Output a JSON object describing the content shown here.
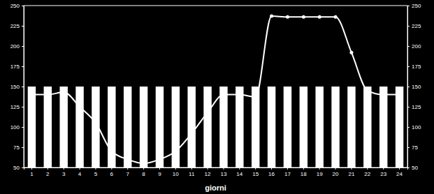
{
  "chart_data": {
    "type": "bar",
    "x_label": "giorni",
    "categories": [
      "1",
      "2",
      "3",
      "4",
      "5",
      "6",
      "7",
      "8",
      "9",
      "10",
      "11",
      "12",
      "13",
      "14",
      "15",
      "16",
      "17",
      "18",
      "19",
      "20",
      "21",
      "22",
      "23",
      "24"
    ],
    "series": [
      {
        "type": "bar",
        "color": "#ffffff",
        "values": [
          150,
          150,
          150,
          150,
          150,
          150,
          150,
          150,
          150,
          150,
          150,
          150,
          150,
          150,
          150,
          150,
          150,
          150,
          150,
          150,
          150,
          150,
          150,
          150
        ]
      },
      {
        "type": "line",
        "color": "#ffffff",
        "marker": "circle",
        "line_style": "solid",
        "values": [
          140,
          140,
          143,
          125,
          105,
          70,
          60,
          55,
          60,
          70,
          92,
          118,
          140,
          140,
          137,
          237,
          236,
          236,
          236,
          236,
          192,
          145,
          140,
          140
        ]
      }
    ],
    "ylim": [
      50,
      250
    ],
    "yticks": [
      50,
      75,
      100,
      125,
      150,
      175,
      200,
      225,
      250
    ],
    "y2lim": [
      50,
      250
    ],
    "y2ticks": [
      50,
      75,
      100,
      125,
      150,
      175,
      200,
      225,
      250
    ],
    "grid": false
  }
}
